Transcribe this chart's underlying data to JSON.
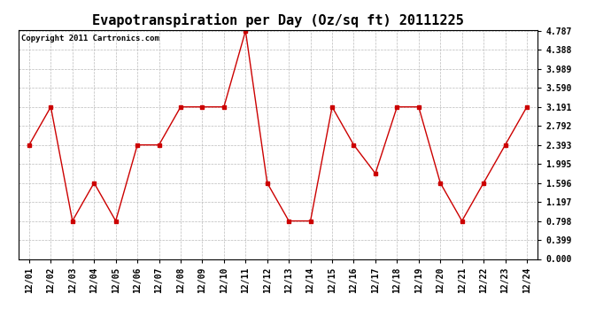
{
  "title": "Evapotranspiration per Day (Oz/sq ft) 20111225",
  "copyright": "Copyright 2011 Cartronics.com",
  "x_labels": [
    "12/01",
    "12/02",
    "12/03",
    "12/04",
    "12/05",
    "12/06",
    "12/07",
    "12/08",
    "12/09",
    "12/10",
    "12/11",
    "12/12",
    "12/13",
    "12/14",
    "12/15",
    "12/16",
    "12/17",
    "12/18",
    "12/19",
    "12/20",
    "12/21",
    "12/22",
    "12/23",
    "12/24"
  ],
  "y_values": [
    2.393,
    3.191,
    0.798,
    1.596,
    0.798,
    2.393,
    2.393,
    3.191,
    3.191,
    3.191,
    4.787,
    1.596,
    0.798,
    0.798,
    3.191,
    2.393,
    1.795,
    3.191,
    3.191,
    1.596,
    0.798,
    1.596,
    2.393,
    3.191
  ],
  "y_ticks": [
    0.0,
    0.399,
    0.798,
    1.197,
    1.596,
    1.995,
    2.393,
    2.792,
    3.191,
    3.59,
    3.989,
    4.388,
    4.787
  ],
  "line_color": "#cc0000",
  "marker": "s",
  "marker_size": 3,
  "bg_color": "#ffffff",
  "plot_bg_color": "#ffffff",
  "grid_color": "#bbbbbb",
  "ylim_min": 0.0,
  "ylim_max": 4.787,
  "title_fontsize": 11,
  "tick_fontsize": 7,
  "copyright_fontsize": 6.5
}
